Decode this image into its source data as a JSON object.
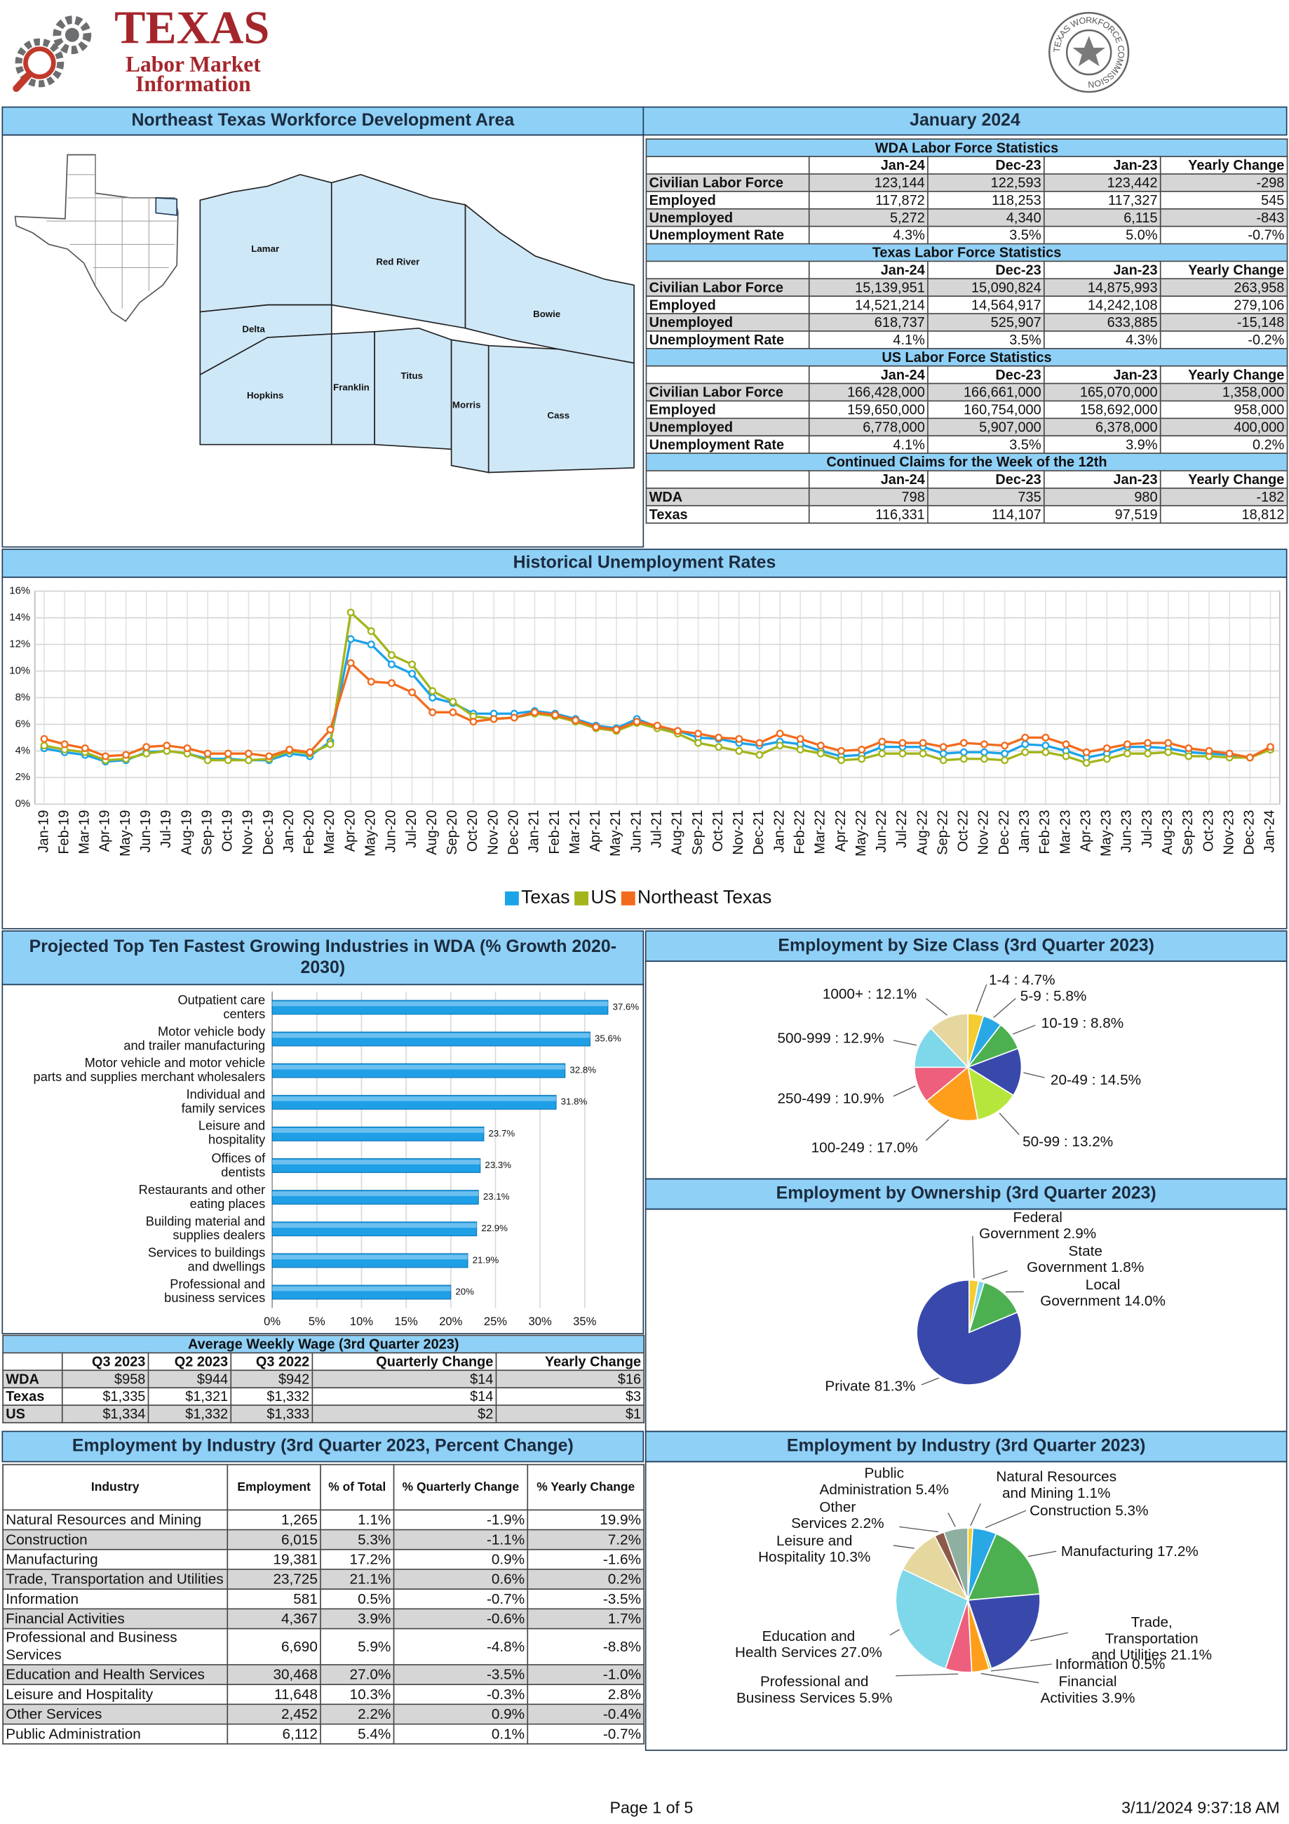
{
  "header": {
    "logo_title": "TEXAS",
    "logo_line1": "Labor Market",
    "logo_line2": "Information",
    "seal": "TEXAS WORKFORCE COMMISSION"
  },
  "area": {
    "title": "Northeast Texas Workforce Development Area",
    "period": "January 2024"
  },
  "map": {
    "counties": [
      "Lamar",
      "Red River",
      "Delta",
      "Bowie",
      "Hopkins",
      "Franklin",
      "Titus",
      "Morris",
      "Cass"
    ]
  },
  "labor_tables": [
    {
      "title": "WDA Labor Force Statistics",
      "columns": [
        "Jan-24",
        "Dec-23",
        "Jan-23",
        "Yearly Change"
      ],
      "rows": [
        [
          "Civilian Labor Force",
          "123,144",
          "122,593",
          "123,442",
          "-298"
        ],
        [
          "Employed",
          "117,872",
          "118,253",
          "117,327",
          "545"
        ],
        [
          "Unemployed",
          "5,272",
          "4,340",
          "6,115",
          "-843"
        ],
        [
          "Unemployment Rate",
          "4.3%",
          "3.5%",
          "5.0%",
          "-0.7%"
        ]
      ]
    },
    {
      "title": "Texas Labor Force Statistics",
      "columns": [
        "Jan-24",
        "Dec-23",
        "Jan-23",
        "Yearly Change"
      ],
      "rows": [
        [
          "Civilian Labor Force",
          "15,139,951",
          "15,090,824",
          "14,875,993",
          "263,958"
        ],
        [
          "Employed",
          "14,521,214",
          "14,564,917",
          "14,242,108",
          "279,106"
        ],
        [
          "Unemployed",
          "618,737",
          "525,907",
          "633,885",
          "-15,148"
        ],
        [
          "Unemployment Rate",
          "4.1%",
          "3.5%",
          "4.3%",
          "-0.2%"
        ]
      ]
    },
    {
      "title": "US Labor Force Statistics",
      "columns": [
        "Jan-24",
        "Dec-23",
        "Jan-23",
        "Yearly Change"
      ],
      "rows": [
        [
          "Civilian Labor Force",
          "166,428,000",
          "166,661,000",
          "165,070,000",
          "1,358,000"
        ],
        [
          "Employed",
          "159,650,000",
          "160,754,000",
          "158,692,000",
          "958,000"
        ],
        [
          "Unemployed",
          "6,778,000",
          "5,907,000",
          "6,378,000",
          "400,000"
        ],
        [
          "Unemployment Rate",
          "4.1%",
          "3.5%",
          "3.9%",
          "0.2%"
        ]
      ]
    },
    {
      "title": "Continued Claims for the Week of the 12th",
      "columns": [
        "Jan-24",
        "Dec-23",
        "Jan-23",
        "Yearly Change"
      ],
      "rows": [
        [
          "WDA",
          "798",
          "735",
          "980",
          "-182"
        ],
        [
          "Texas",
          "116,331",
          "114,107",
          "97,519",
          "18,812"
        ]
      ]
    }
  ],
  "chart_data": [
    {
      "type": "line",
      "title": "Historical Unemployment Rates",
      "categories": [
        "Jan-19",
        "Feb-19",
        "Mar-19",
        "Apr-19",
        "May-19",
        "Jun-19",
        "Jul-19",
        "Aug-19",
        "Sep-19",
        "Oct-19",
        "Nov-19",
        "Dec-19",
        "Jan-20",
        "Feb-20",
        "Mar-20",
        "Apr-20",
        "May-20",
        "Jun-20",
        "Jul-20",
        "Aug-20",
        "Sep-20",
        "Oct-20",
        "Nov-20",
        "Dec-20",
        "Jan-21",
        "Feb-21",
        "Mar-21",
        "Apr-21",
        "May-21",
        "Jun-21",
        "Jul-21",
        "Aug-21",
        "Sep-21",
        "Oct-21",
        "Nov-21",
        "Dec-21",
        "Jan-22",
        "Feb-22",
        "Mar-22",
        "Apr-22",
        "May-22",
        "Jun-22",
        "Jul-22",
        "Aug-22",
        "Sep-22",
        "Oct-22",
        "Nov-22",
        "Dec-22",
        "Jan-23",
        "Feb-23",
        "Mar-23",
        "Apr-23",
        "May-23",
        "Jun-23",
        "Jul-23",
        "Aug-23",
        "Sep-23",
        "Oct-23",
        "Nov-23",
        "Dec-23",
        "Jan-24"
      ],
      "series": [
        {
          "name": "Texas",
          "color": "#1ba3e8",
          "values": [
            4.2,
            3.9,
            3.7,
            3.2,
            3.3,
            3.9,
            4.0,
            3.8,
            3.4,
            3.4,
            3.3,
            3.3,
            3.8,
            3.6,
            4.7,
            12.4,
            12.0,
            10.5,
            9.8,
            8.0,
            7.6,
            6.8,
            6.8,
            6.8,
            7.0,
            6.8,
            6.4,
            5.9,
            5.7,
            6.4,
            5.8,
            5.5,
            5.0,
            4.9,
            4.6,
            4.4,
            4.7,
            4.5,
            4.0,
            3.6,
            3.7,
            4.3,
            4.3,
            4.3,
            3.8,
            3.9,
            3.9,
            3.8,
            4.5,
            4.4,
            4.0,
            3.5,
            3.8,
            4.3,
            4.3,
            4.2,
            3.9,
            3.8,
            3.7,
            3.5,
            4.1
          ]
        },
        {
          "name": "US",
          "color": "#a3b51a",
          "values": [
            4.4,
            4.1,
            3.9,
            3.3,
            3.4,
            3.8,
            4.0,
            3.8,
            3.3,
            3.3,
            3.3,
            3.4,
            4.0,
            3.8,
            4.5,
            14.4,
            13.0,
            11.2,
            10.5,
            8.5,
            7.7,
            6.6,
            6.4,
            6.5,
            6.8,
            6.6,
            6.2,
            5.7,
            5.5,
            6.1,
            5.7,
            5.3,
            4.6,
            4.3,
            4.0,
            3.7,
            4.4,
            4.1,
            3.8,
            3.3,
            3.4,
            3.8,
            3.8,
            3.8,
            3.3,
            3.4,
            3.4,
            3.3,
            3.9,
            3.9,
            3.6,
            3.1,
            3.4,
            3.8,
            3.8,
            3.9,
            3.6,
            3.6,
            3.5,
            3.5,
            4.1
          ]
        },
        {
          "name": "Northeast Texas",
          "color": "#f26b1d",
          "values": [
            4.9,
            4.5,
            4.2,
            3.6,
            3.7,
            4.3,
            4.4,
            4.2,
            3.8,
            3.8,
            3.8,
            3.6,
            4.1,
            3.9,
            5.6,
            10.6,
            9.2,
            9.1,
            8.4,
            6.9,
            6.9,
            6.2,
            6.4,
            6.5,
            6.9,
            6.7,
            6.3,
            5.8,
            5.6,
            6.2,
            5.9,
            5.5,
            5.3,
            5.0,
            4.9,
            4.6,
            5.3,
            4.9,
            4.4,
            4.0,
            4.1,
            4.7,
            4.6,
            4.6,
            4.3,
            4.6,
            4.5,
            4.4,
            5.0,
            5.0,
            4.5,
            3.9,
            4.2,
            4.5,
            4.6,
            4.6,
            4.2,
            4.0,
            3.8,
            3.5,
            4.3
          ]
        }
      ],
      "ylim": [
        0,
        16
      ],
      "yticks": [
        {
          "value": 0,
          "label": "0%"
        },
        {
          "value": 2,
          "label": "2%"
        },
        {
          "value": 4,
          "label": "4%"
        },
        {
          "value": 6,
          "label": "6%"
        },
        {
          "value": 8,
          "label": "8%"
        },
        {
          "value": 10,
          "label": "10%"
        },
        {
          "value": 12,
          "label": "12%"
        },
        {
          "value": 14,
          "label": "14%"
        },
        {
          "value": 16,
          "label": "16%"
        }
      ],
      "grid": true,
      "legend": "bottom"
    },
    {
      "type": "bar",
      "orientation": "horizontal",
      "title": "Projected Top Ten Fastest Growing Industries in WDA (% Growth 2020-2030)",
      "categories": [
        "Outpatient care\ncenters",
        "Motor vehicle body\nand trailer manufacturing",
        "Motor vehicle and motor vehicle\nparts and supplies merchant wholesalers",
        "Individual and\nfamily services",
        "Leisure and\nhospitality",
        "Offices of\ndentists",
        "Restaurants and other\neating places",
        "Building material and\nsupplies dealers",
        "Services to buildings\nand dwellings",
        "Professional and\nbusiness services"
      ],
      "values": [
        37.6,
        35.6,
        32.8,
        31.8,
        23.7,
        23.3,
        23.1,
        22.9,
        21.9,
        20
      ],
      "value_labels": [
        "37.6%",
        "35.6%",
        "32.8%",
        "31.8%",
        "23.7%",
        "23.3%",
        "23.1%",
        "22.9%",
        "21.9%",
        "20%"
      ],
      "color": "#1e9fe6",
      "xlim": [
        0,
        40
      ],
      "xticks": [
        {
          "value": 0,
          "label": "0%"
        },
        {
          "value": 5,
          "label": "5%"
        },
        {
          "value": 10,
          "label": "10%"
        },
        {
          "value": 15,
          "label": "15%"
        },
        {
          "value": 20,
          "label": "20%"
        },
        {
          "value": 25,
          "label": "25%"
        },
        {
          "value": 30,
          "label": "30%"
        },
        {
          "value": 35,
          "label": "35%"
        }
      ],
      "grid": true
    },
    {
      "type": "pie",
      "title": "Employment by Size Class (3rd Quarter 2023)",
      "labels": [
        "1-4 : 4.7%",
        "5-9 : 5.8%",
        "10-19 : 8.8%",
        "20-49 : 14.5%",
        "50-99 : 13.2%",
        "100-249 : 17.0%",
        "250-499 : 10.9%",
        "500-999 : 12.9%",
        "1000+ : 12.1%"
      ],
      "values": [
        4.7,
        5.8,
        8.8,
        14.5,
        13.2,
        17.0,
        10.9,
        12.9,
        12.1
      ],
      "colors": [
        "#f5cd32",
        "#29a8e6",
        "#4cb050",
        "#3949ab",
        "#b6e63c",
        "#ff9e1b",
        "#ee5f7d",
        "#7fd7ea",
        "#e6d79e"
      ]
    },
    {
      "type": "pie",
      "title": "Employment by Ownership (3rd Quarter 2023)",
      "labels": [
        "Federal\nGovernment 2.9%",
        "State\nGovernment 1.8%",
        "Local\nGovernment 14.0%",
        "Private 81.3%"
      ],
      "values": [
        2.9,
        1.8,
        14.0,
        81.3
      ],
      "colors": [
        "#f5cd32",
        "#7fd7ea",
        "#4cb050",
        "#3949ab"
      ]
    },
    {
      "type": "pie",
      "title": "Employment by Industry (3rd Quarter 2023)",
      "labels": [
        "Natural Resources\nand Mining 1.1%",
        "Construction 5.3%",
        "Manufacturing 17.2%",
        "Trade, Transportation\nand Utilities 21.1%",
        "Information 0.5%",
        "Financial\nActivities 3.9%",
        "Professional and\nBusiness Services 5.9%",
        "Education and\nHealth Services 27.0%",
        "Leisure and\nHospitality 10.3%",
        "Other\nServices 2.2%",
        "Public\nAdministration 5.4%"
      ],
      "values": [
        1.1,
        5.3,
        17.2,
        21.1,
        0.5,
        3.9,
        5.9,
        27.0,
        10.3,
        2.2,
        5.4
      ],
      "colors": [
        "#f5cd32",
        "#29a8e6",
        "#4cb050",
        "#3949ab",
        "#b6e63c",
        "#ff9e1b",
        "#ee5f7d",
        "#7fd7ea",
        "#e6d79e",
        "#8d5a4a",
        "#8fb0a0"
      ]
    }
  ],
  "wage_table": {
    "title": "Average Weekly Wage (3rd Quarter 2023)",
    "columns": [
      "Q3 2023",
      "Q2 2023",
      "Q3 2022",
      "Quarterly Change",
      "Yearly Change"
    ],
    "rows": [
      [
        "WDA",
        "$958",
        "$944",
        "$942",
        "$14",
        "$16"
      ],
      [
        "Texas",
        "$1,335",
        "$1,321",
        "$1,332",
        "$14",
        "$3"
      ],
      [
        "US",
        "$1,334",
        "$1,332",
        "$1,333",
        "$2",
        "$1"
      ]
    ]
  },
  "industry_table": {
    "title": "Employment by Industry (3rd Quarter 2023, Percent Change)",
    "columns": [
      "Industry",
      "Employment",
      "% of Total",
      "% Quarterly Change",
      "% Yearly Change"
    ],
    "rows": [
      [
        "Natural Resources and Mining",
        "1,265",
        "1.1%",
        "-1.9%",
        "19.9%"
      ],
      [
        "Construction",
        "6,015",
        "5.3%",
        "-1.1%",
        "7.2%"
      ],
      [
        "Manufacturing",
        "19,381",
        "17.2%",
        "0.9%",
        "-1.6%"
      ],
      [
        "Trade, Transportation and Utilities",
        "23,725",
        "21.1%",
        "0.6%",
        "0.2%"
      ],
      [
        "Information",
        "581",
        "0.5%",
        "-0.7%",
        "-3.5%"
      ],
      [
        "Financial Activities",
        "4,367",
        "3.9%",
        "-0.6%",
        "1.7%"
      ],
      [
        "Professional and Business Services",
        "6,690",
        "5.9%",
        "-4.8%",
        "-8.8%"
      ],
      [
        "Education and Health Services",
        "30,468",
        "27.0%",
        "-3.5%",
        "-1.0%"
      ],
      [
        "Leisure and Hospitality",
        "11,648",
        "10.3%",
        "-0.3%",
        "2.8%"
      ],
      [
        "Other Services",
        "2,452",
        "2.2%",
        "0.9%",
        "-0.4%"
      ],
      [
        "Public Administration",
        "6,112",
        "5.4%",
        "0.1%",
        "-0.7%"
      ]
    ]
  },
  "footer": {
    "page": "Page 1 of 5",
    "timestamp": "3/11/2024 9:37:18 AM"
  }
}
